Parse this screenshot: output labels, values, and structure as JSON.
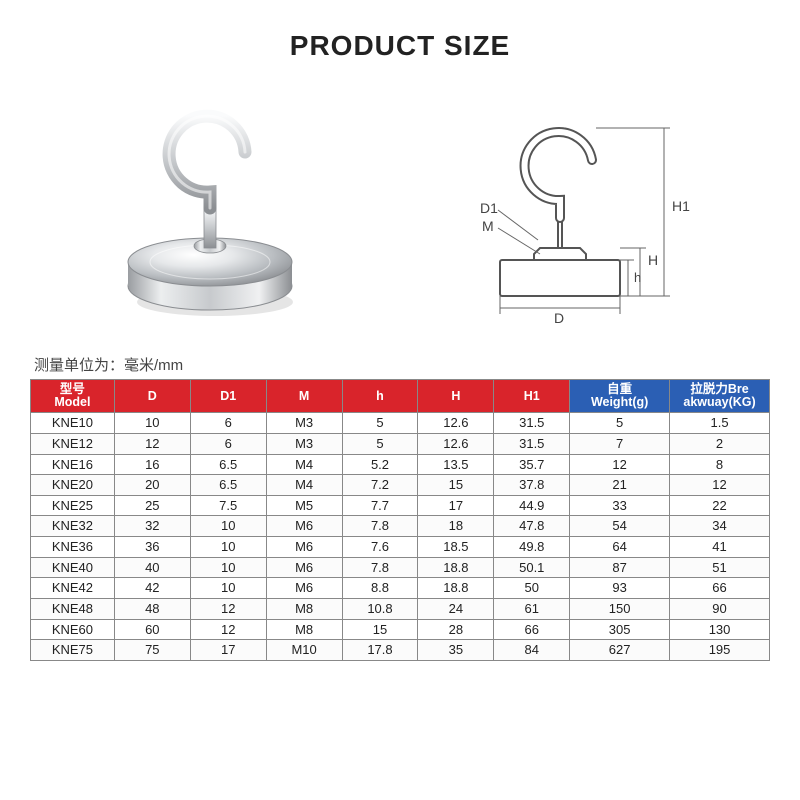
{
  "title": "PRODUCT SIZE",
  "unit_note": "测量单位为：毫米/mm",
  "headers": {
    "red": [
      "型号\nModel",
      "D",
      "D1",
      "M",
      "h",
      "H",
      "H1"
    ],
    "blue": [
      "自重\nWeight(g)",
      "拉脱力Bre\nakwuay(KG)"
    ]
  },
  "header_colors": {
    "red": "#d9242b",
    "blue": "#2b5fb4"
  },
  "diagram_labels": [
    "D1",
    "M",
    "H1",
    "H",
    "h",
    "D"
  ],
  "rows": [
    [
      "KNE10",
      "10",
      "6",
      "M3",
      "5",
      "12.6",
      "31.5",
      "5",
      "1.5"
    ],
    [
      "KNE12",
      "12",
      "6",
      "M3",
      "5",
      "12.6",
      "31.5",
      "7",
      "2"
    ],
    [
      "KNE16",
      "16",
      "6.5",
      "M4",
      "5.2",
      "13.5",
      "35.7",
      "12",
      "8"
    ],
    [
      "KNE20",
      "20",
      "6.5",
      "M4",
      "7.2",
      "15",
      "37.8",
      "21",
      "12"
    ],
    [
      "KNE25",
      "25",
      "7.5",
      "M5",
      "7.7",
      "17",
      "44.9",
      "33",
      "22"
    ],
    [
      "KNE32",
      "32",
      "10",
      "M6",
      "7.8",
      "18",
      "47.8",
      "54",
      "34"
    ],
    [
      "KNE36",
      "36",
      "10",
      "M6",
      "7.6",
      "18.5",
      "49.8",
      "64",
      "41"
    ],
    [
      "KNE40",
      "40",
      "10",
      "M6",
      "7.8",
      "18.8",
      "50.1",
      "87",
      "51"
    ],
    [
      "KNE42",
      "42",
      "10",
      "M6",
      "8.8",
      "18.8",
      "50",
      "93",
      "66"
    ],
    [
      "KNE48",
      "48",
      "12",
      "M8",
      "10.8",
      "24",
      "61",
      "150",
      "90"
    ],
    [
      "KNE60",
      "60",
      "12",
      "M8",
      "15",
      "28",
      "66",
      "305",
      "130"
    ],
    [
      "KNE75",
      "75",
      "17",
      "M10",
      "17.8",
      "35",
      "84",
      "627",
      "195"
    ]
  ],
  "table_style": {
    "border_color": "#888888",
    "row_bg": "#ffffff",
    "row_bg_alt": "#fbfbfb"
  }
}
